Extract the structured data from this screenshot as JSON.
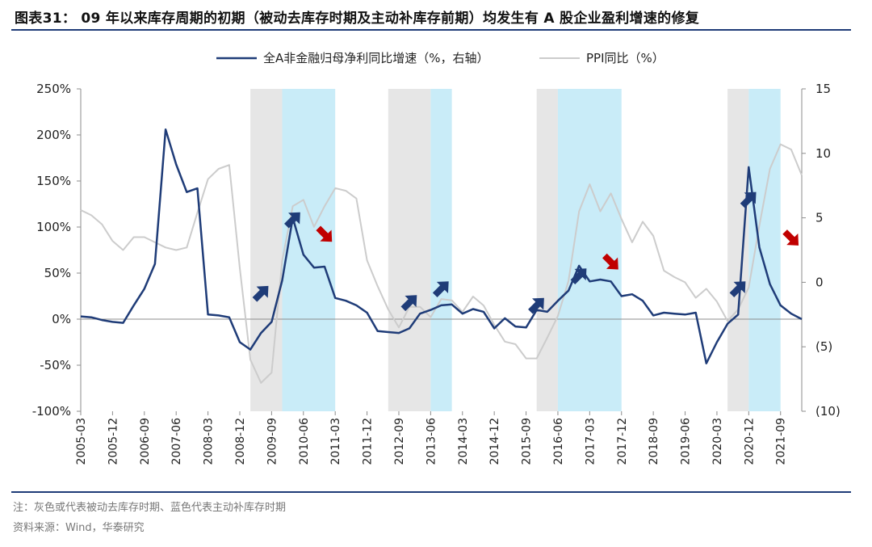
{
  "title": "图表31： 09 年以来库存周期的初期（被动去库存时期及主动补库存前期）均发生有 A 股企业盈利增速的修复",
  "note": "注：灰色或代表被动去库存时期、蓝色代表主动补库存时期",
  "source": "资料来源：Wind，华泰研究",
  "chart_data": {
    "type": "line",
    "title": "",
    "xlabel": "",
    "ylabel": "",
    "legend_position": "top-center",
    "grid": false,
    "x_start": "2005-03",
    "x_end": "2022-03",
    "x_ticks": [
      "2005-03",
      "2005-12",
      "2006-09",
      "2007-06",
      "2008-03",
      "2008-12",
      "2009-09",
      "2010-06",
      "2011-03",
      "2011-12",
      "2012-09",
      "2013-06",
      "2014-03",
      "2014-12",
      "2015-09",
      "2016-06",
      "2017-03",
      "2017-12",
      "2018-09",
      "2019-06",
      "2020-03",
      "2020-12",
      "2021-09"
    ],
    "y_left": {
      "ylim": [
        -100,
        250
      ],
      "ticks": [
        "-100%",
        "-50%",
        "0%",
        "50%",
        "100%",
        "150%",
        "200%",
        "250%"
      ]
    },
    "y_right": {
      "ylim": [
        -10,
        15
      ],
      "ticks": [
        "(10)",
        "(5)",
        "0",
        "5",
        "10",
        "15"
      ]
    },
    "series": [
      {
        "name": "全A非金融归母净利同比增速（%，右轴）",
        "axis": "left",
        "color": "#1f3c78",
        "x": [
          "2005-03",
          "2005-06",
          "2005-09",
          "2005-12",
          "2006-03",
          "2006-06",
          "2006-09",
          "2006-12",
          "2007-03",
          "2007-06",
          "2007-09",
          "2007-12",
          "2008-03",
          "2008-06",
          "2008-09",
          "2008-12",
          "2009-03",
          "2009-06",
          "2009-09",
          "2009-12",
          "2010-03",
          "2010-06",
          "2010-09",
          "2010-12",
          "2011-03",
          "2011-06",
          "2011-09",
          "2011-12",
          "2012-03",
          "2012-06",
          "2012-09",
          "2012-12",
          "2013-03",
          "2013-06",
          "2013-09",
          "2013-12",
          "2014-03",
          "2014-06",
          "2014-09",
          "2014-12",
          "2015-03",
          "2015-06",
          "2015-09",
          "2015-12",
          "2016-03",
          "2016-06",
          "2016-09",
          "2016-12",
          "2017-03",
          "2017-06",
          "2017-09",
          "2017-12",
          "2018-03",
          "2018-06",
          "2018-09",
          "2018-12",
          "2019-03",
          "2019-06",
          "2019-09",
          "2019-12",
          "2020-03",
          "2020-06",
          "2020-09",
          "2020-12",
          "2021-03",
          "2021-06",
          "2021-09",
          "2021-12",
          "2022-03"
        ],
        "values": [
          3,
          2,
          -1,
          -3,
          -4,
          15,
          33,
          60,
          206,
          168,
          138,
          142,
          5,
          4,
          2,
          -25,
          -33,
          -15,
          -3,
          42,
          110,
          70,
          56,
          57,
          23,
          20,
          15,
          7,
          -13,
          -14,
          -15,
          -10,
          6,
          10,
          15,
          16,
          6,
          11,
          8,
          -10,
          1,
          -8,
          -9,
          10,
          8,
          20,
          31,
          58,
          41,
          43,
          41,
          25,
          27,
          20,
          4,
          7,
          6,
          5,
          7,
          -48,
          -25,
          -5,
          5,
          165,
          78,
          38,
          15,
          6,
          0
        ]
      },
      {
        "name": "PPI同比（%）",
        "axis": "right",
        "color": "#cccccc",
        "x": [
          "2005-03",
          "2005-06",
          "2005-09",
          "2005-12",
          "2006-03",
          "2006-06",
          "2006-09",
          "2006-12",
          "2007-03",
          "2007-06",
          "2007-09",
          "2007-12",
          "2008-03",
          "2008-06",
          "2008-09",
          "2008-12",
          "2009-03",
          "2009-06",
          "2009-09",
          "2009-12",
          "2010-03",
          "2010-06",
          "2010-09",
          "2010-12",
          "2011-03",
          "2011-06",
          "2011-09",
          "2011-12",
          "2012-03",
          "2012-06",
          "2012-09",
          "2012-12",
          "2013-03",
          "2013-06",
          "2013-09",
          "2013-12",
          "2014-03",
          "2014-06",
          "2014-09",
          "2014-12",
          "2015-03",
          "2015-06",
          "2015-09",
          "2015-12",
          "2016-03",
          "2016-06",
          "2016-09",
          "2016-12",
          "2017-03",
          "2017-06",
          "2017-09",
          "2017-12",
          "2018-03",
          "2018-06",
          "2018-09",
          "2018-12",
          "2019-03",
          "2019-06",
          "2019-09",
          "2019-12",
          "2020-03",
          "2020-06",
          "2020-09",
          "2020-12",
          "2021-03",
          "2021-06",
          "2021-09",
          "2021-12",
          "2022-03"
        ],
        "values": [
          5.6,
          5.2,
          4.5,
          3.2,
          2.5,
          3.5,
          3.5,
          3.1,
          2.7,
          2.5,
          2.7,
          5.4,
          8.0,
          8.8,
          9.1,
          1.1,
          -6.0,
          -7.8,
          -7.0,
          1.7,
          5.9,
          6.4,
          4.3,
          5.9,
          7.3,
          7.1,
          6.5,
          1.7,
          -0.3,
          -2.1,
          -3.5,
          -1.9,
          -1.9,
          -2.7,
          -1.3,
          -1.4,
          -2.3,
          -1.1,
          -1.8,
          -3.3,
          -4.6,
          -4.8,
          -5.9,
          -5.9,
          -4.3,
          -2.6,
          0.1,
          5.5,
          7.6,
          5.5,
          6.9,
          4.9,
          3.1,
          4.7,
          3.6,
          0.9,
          0.4,
          0.0,
          -1.2,
          -0.5,
          -1.5,
          -3.0,
          -2.1,
          -0.4,
          4.4,
          8.8,
          10.7,
          10.3,
          8.3
        ]
      }
    ],
    "shaded_periods": [
      {
        "type": "gray",
        "start": "2009-03",
        "end": "2009-12"
      },
      {
        "type": "blue",
        "start": "2009-12",
        "end": "2011-03"
      },
      {
        "type": "gray",
        "start": "2012-06",
        "end": "2013-06"
      },
      {
        "type": "blue",
        "start": "2013-06",
        "end": "2013-12"
      },
      {
        "type": "gray",
        "start": "2015-12",
        "end": "2016-06"
      },
      {
        "type": "blue",
        "start": "2016-06",
        "end": "2017-12"
      },
      {
        "type": "gray",
        "start": "2020-06",
        "end": "2020-12"
      },
      {
        "type": "blue",
        "start": "2020-12",
        "end": "2021-09"
      }
    ],
    "arrows": [
      {
        "dir": "up",
        "x": "2009-06",
        "y": 28
      },
      {
        "dir": "up",
        "x": "2010-03",
        "y": 108
      },
      {
        "dir": "down",
        "x": "2010-12",
        "y": 92
      },
      {
        "dir": "up",
        "x": "2012-12",
        "y": 18
      },
      {
        "dir": "up",
        "x": "2013-09",
        "y": 33
      },
      {
        "dir": "up",
        "x": "2015-12",
        "y": 15
      },
      {
        "dir": "up",
        "x": "2016-12",
        "y": 47
      },
      {
        "dir": "down",
        "x": "2017-09",
        "y": 62
      },
      {
        "dir": "up",
        "x": "2020-09",
        "y": 33
      },
      {
        "dir": "up",
        "x": "2020-12",
        "y": 130
      },
      {
        "dir": "down",
        "x": "2021-12",
        "y": 88
      }
    ],
    "colors": {
      "gray_band": "#e6e6e6",
      "blue_band": "#c9ecf8",
      "arrow_up": "#1f3c78",
      "arrow_down": "#c00000",
      "axis": "#8c8c8c"
    }
  }
}
